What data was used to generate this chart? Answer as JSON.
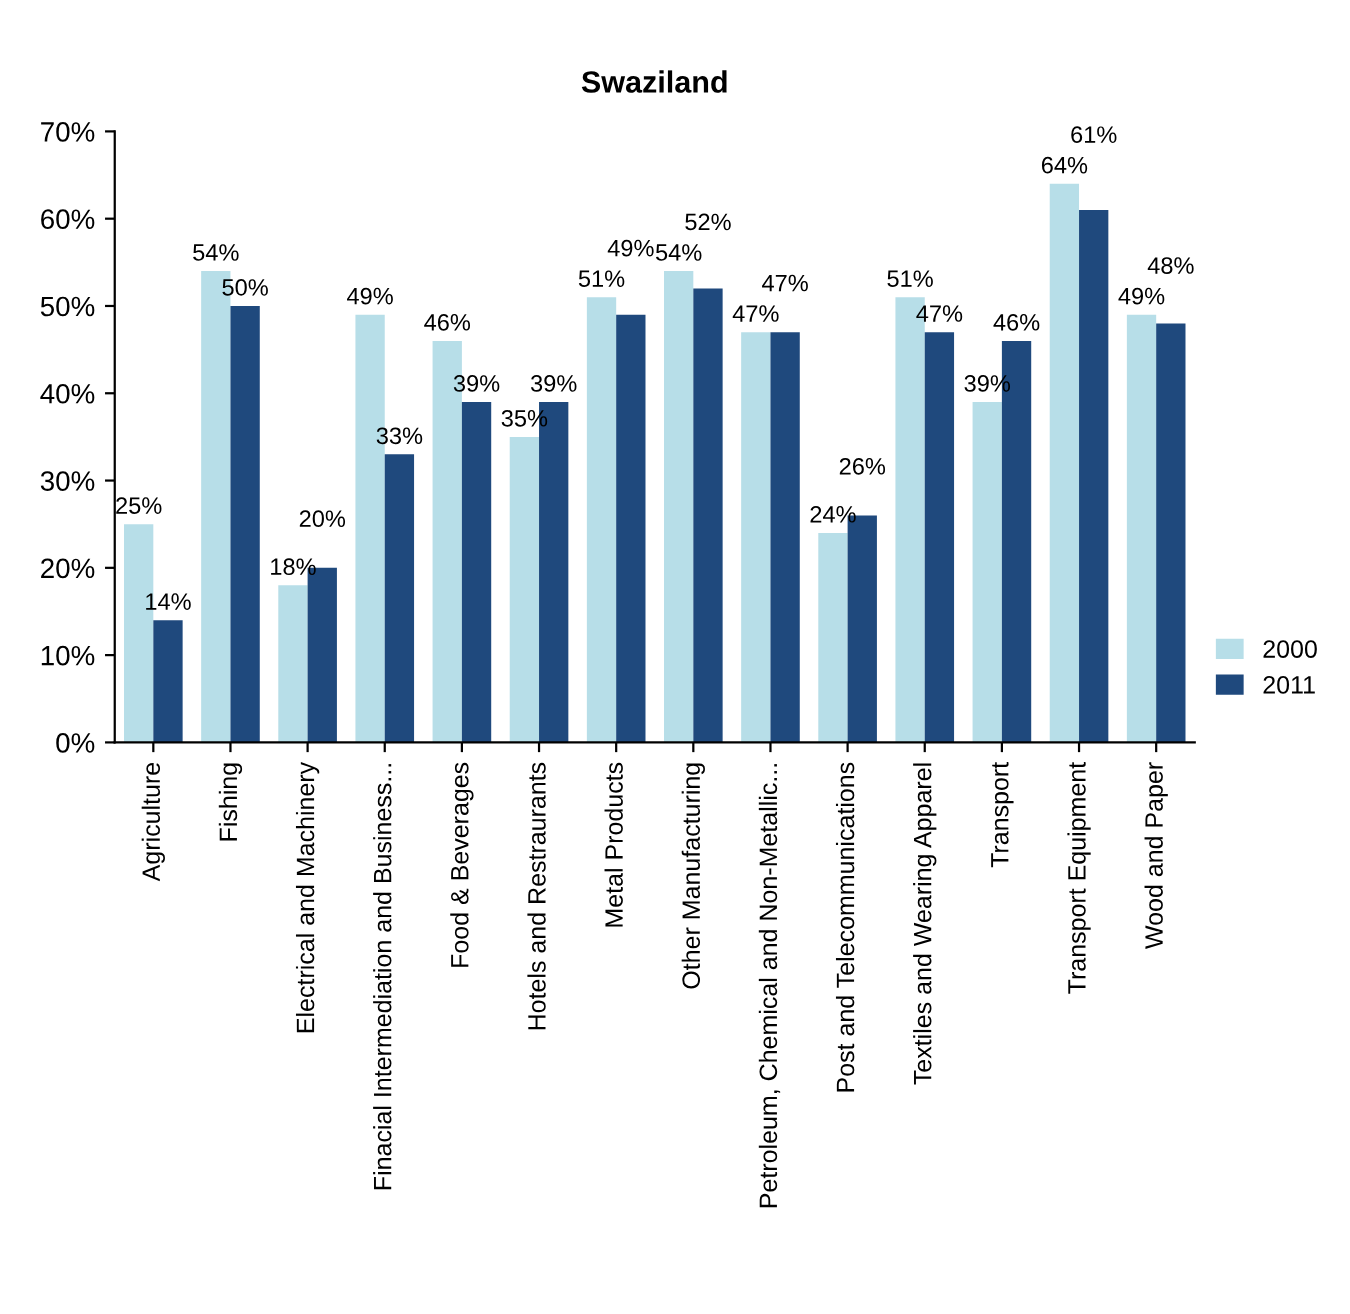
{
  "chart_data": {
    "type": "bar",
    "title": "Swaziland",
    "categories": [
      "Agriculture",
      "Fishing",
      "Electrical and Machinery",
      "Finacial Intermediation and Business...",
      "Food & Beverages",
      "Hotels and Restraurants",
      "Metal Products",
      "Other Manufacturing",
      "Petroleum, Chemical and Non-Metallic...",
      "Post and Telecommunications",
      "Textiles and Wearing Apparel",
      "Transport",
      "Transport Equipment",
      "Wood and Paper"
    ],
    "series": [
      {
        "name": "2000",
        "color": "#b7dee8",
        "values": [
          25,
          54,
          18,
          49,
          46,
          35,
          51,
          54,
          47,
          24,
          51,
          39,
          64,
          49
        ],
        "value_labels": [
          "25%",
          "54%",
          "18%",
          "49%",
          "46%",
          "35%",
          "51%",
          "54%",
          "47%",
          "24%",
          "51%",
          "39%",
          "64%",
          "49%"
        ]
      },
      {
        "name": "2011",
        "color": "#1f497d",
        "values": [
          14,
          50,
          20,
          33,
          39,
          39,
          49,
          52,
          47,
          26,
          47,
          46,
          61,
          48
        ],
        "value_labels": [
          "14%",
          "50%",
          "20%",
          "33%",
          "39%",
          "39%",
          "49%",
          "52%",
          "47%",
          "26%",
          "47%",
          "46%",
          "61%",
          "48%"
        ]
      }
    ],
    "ylim": [
      0,
      70
    ],
    "yticks": [
      {
        "value": 0,
        "label": "0%"
      },
      {
        "value": 10,
        "label": "10%"
      },
      {
        "value": 20,
        "label": "20%"
      },
      {
        "value": 30,
        "label": "30%"
      },
      {
        "value": 40,
        "label": "40%"
      },
      {
        "value": 50,
        "label": "50%"
      },
      {
        "value": 60,
        "label": "60%"
      },
      {
        "value": 70,
        "label": "70%"
      }
    ],
    "grid": false,
    "legend": "right"
  }
}
